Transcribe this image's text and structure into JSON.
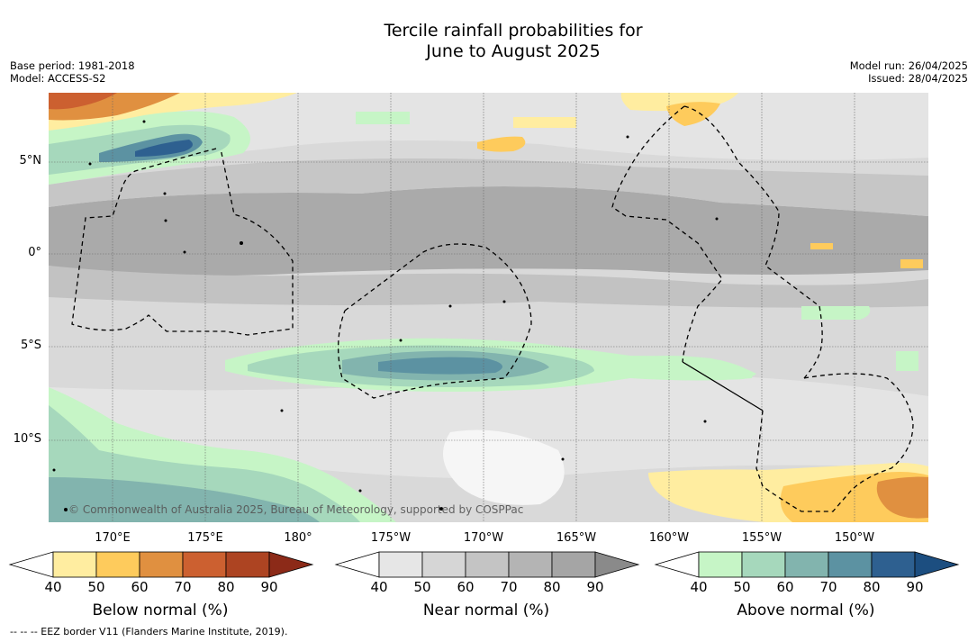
{
  "title_line1": "Tercile rainfall probabilities for",
  "title_line2": "June to August 2025",
  "meta_left": [
    "Base period: 1981-2018",
    "Model: ACCESS-S2"
  ],
  "meta_right": [
    "Model run: 26/04/2025",
    "Issued: 28/04/2025"
  ],
  "credit": "© Commonwealth of Australia 2025, Bureau of Meteorology, supported by COSPPac",
  "footnote": "--  --  -- EEZ border V11 (Flanders Marine Institute, 2019).",
  "lat_labels": [
    "5°N",
    "0°",
    "5°S",
    "10°S"
  ],
  "lon_labels": [
    "170°E",
    "175°E",
    "180°",
    "175°W",
    "170°W",
    "165°W",
    "160°W",
    "155°W",
    "150°W"
  ],
  "colorbars": [
    {
      "title": "Below normal (%)",
      "ticks": [
        "40",
        "50",
        "60",
        "70",
        "80",
        "90"
      ],
      "colors": [
        "#ffeda0",
        "#fecb5c",
        "#e09040",
        "#cc6030",
        "#ad4422",
        "#8c2a18"
      ]
    },
    {
      "title": "Near normal (%)",
      "ticks": [
        "40",
        "50",
        "60",
        "70",
        "80",
        "90"
      ],
      "colors": [
        "#e6e6e6",
        "#d6d6d6",
        "#c4c4c4",
        "#b4b4b4",
        "#a5a5a5",
        "#8a8a8a"
      ]
    },
    {
      "title": "Above normal (%)",
      "ticks": [
        "40",
        "50",
        "60",
        "70",
        "80",
        "90"
      ],
      "colors": [
        "#c6f5c6",
        "#a6d8bc",
        "#82b4ae",
        "#5c92a2",
        "#2e6090",
        "#1c4e80"
      ]
    }
  ]
}
